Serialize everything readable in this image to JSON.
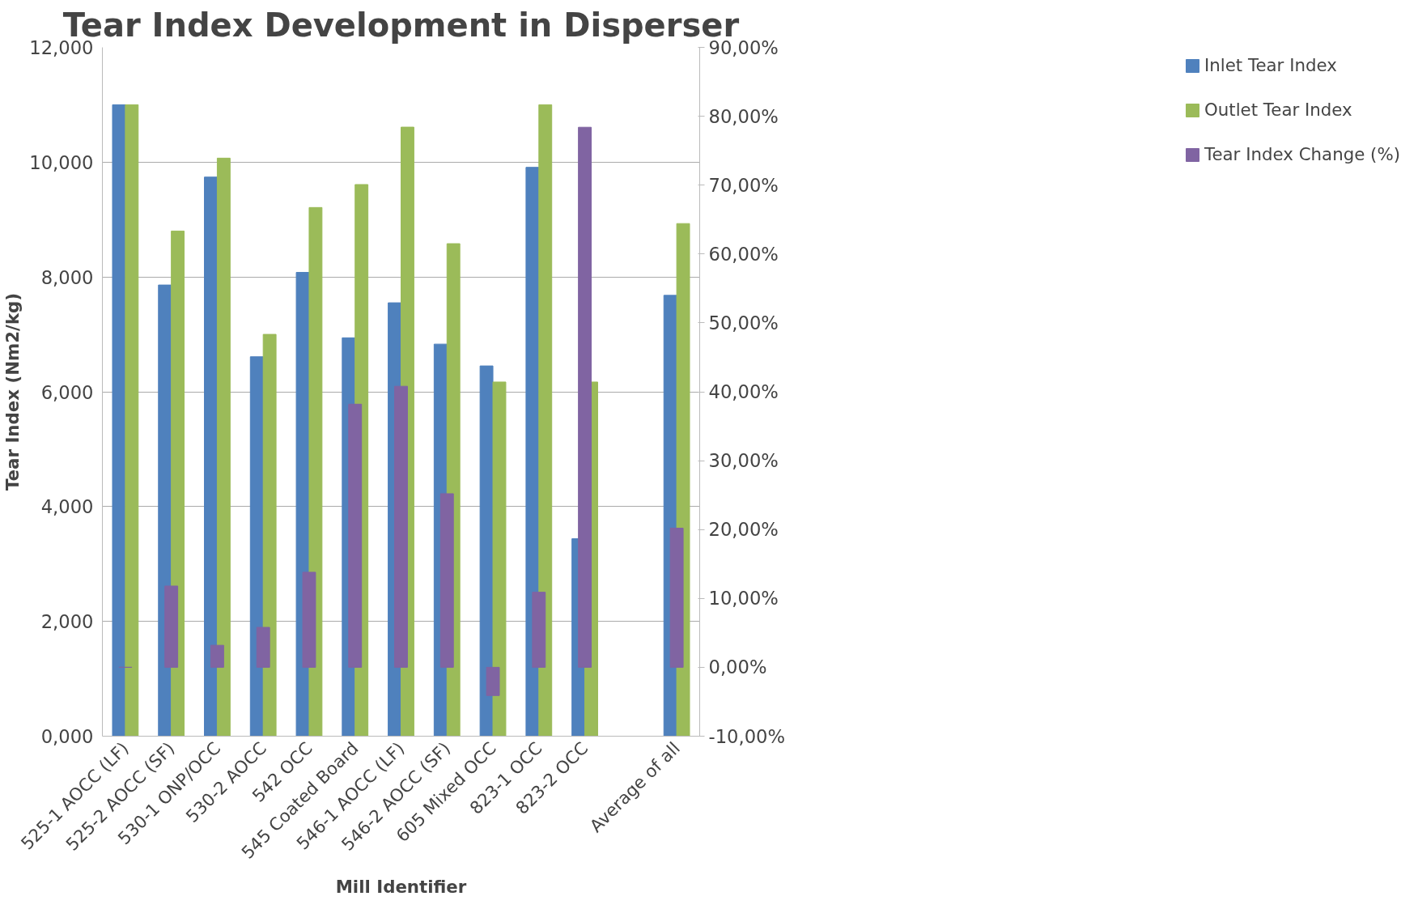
{
  "chart_data": {
    "type": "bar",
    "title": "Tear Index Development in Disperser",
    "xlabel": "Mill Identifier",
    "ylabel": "Tear Index (Nm2/kg)",
    "categories": [
      "525-1 AOCC (LF)",
      "525-2 AOCC (SF)",
      "530-1 ONP/OCC",
      "530-2 AOCC",
      "542 OCC",
      "545 Coated Board",
      "546-1 AOCC (LF)",
      "546-2 AOCC (SF)",
      "605 Mixed OCC",
      "823-1 OCC",
      "823-2 OCC",
      null,
      "Average of all"
    ],
    "series": [
      {
        "name": "Inlet Tear Index",
        "color": "#4f81bd",
        "values": [
          11.0,
          7.86,
          9.74,
          6.61,
          8.08,
          6.94,
          7.55,
          6.83,
          6.45,
          9.91,
          3.44,
          null,
          7.68
        ]
      },
      {
        "name": "Outlet Tear Index",
        "color": "#9bbb59",
        "values": [
          11.0,
          8.8,
          10.07,
          7.0,
          9.21,
          9.61,
          10.61,
          8.58,
          6.17,
          11.0,
          6.17,
          null,
          8.93
        ]
      },
      {
        "name": "Tear Index Change (%)",
        "color": "#8064a2",
        "axis": "y2",
        "values": [
          0,
          11.8,
          3.2,
          5.8,
          13.8,
          38.2,
          40.8,
          25.2,
          -4.1,
          10.9,
          78.4,
          null,
          20.2
        ]
      }
    ],
    "ylim": [
      0,
      12
    ],
    "yticks": [
      {
        "value": 0,
        "label": "0,000"
      },
      {
        "value": 2,
        "label": "2,000"
      },
      {
        "value": 4,
        "label": "4,000"
      },
      {
        "value": 6,
        "label": "6,000"
      },
      {
        "value": 8,
        "label": "8,000"
      },
      {
        "value": 10,
        "label": "10,000"
      },
      {
        "value": 12,
        "label": "12,000"
      }
    ],
    "y2lim": [
      -10,
      90
    ],
    "y2ticks": [
      {
        "value": -10,
        "label": "-10,00%"
      },
      {
        "value": 0,
        "label": "0,00%"
      },
      {
        "value": 10,
        "label": "10,00%"
      },
      {
        "value": 20,
        "label": "20,00%"
      },
      {
        "value": 30,
        "label": "30,00%"
      },
      {
        "value": 40,
        "label": "40,00%"
      },
      {
        "value": 50,
        "label": "50,00%"
      },
      {
        "value": 60,
        "label": "60,00%"
      },
      {
        "value": 70,
        "label": "70,00%"
      },
      {
        "value": 80,
        "label": "80,00%"
      },
      {
        "value": 90,
        "label": "90,00%"
      }
    ],
    "grid": "y",
    "legend": "right"
  }
}
